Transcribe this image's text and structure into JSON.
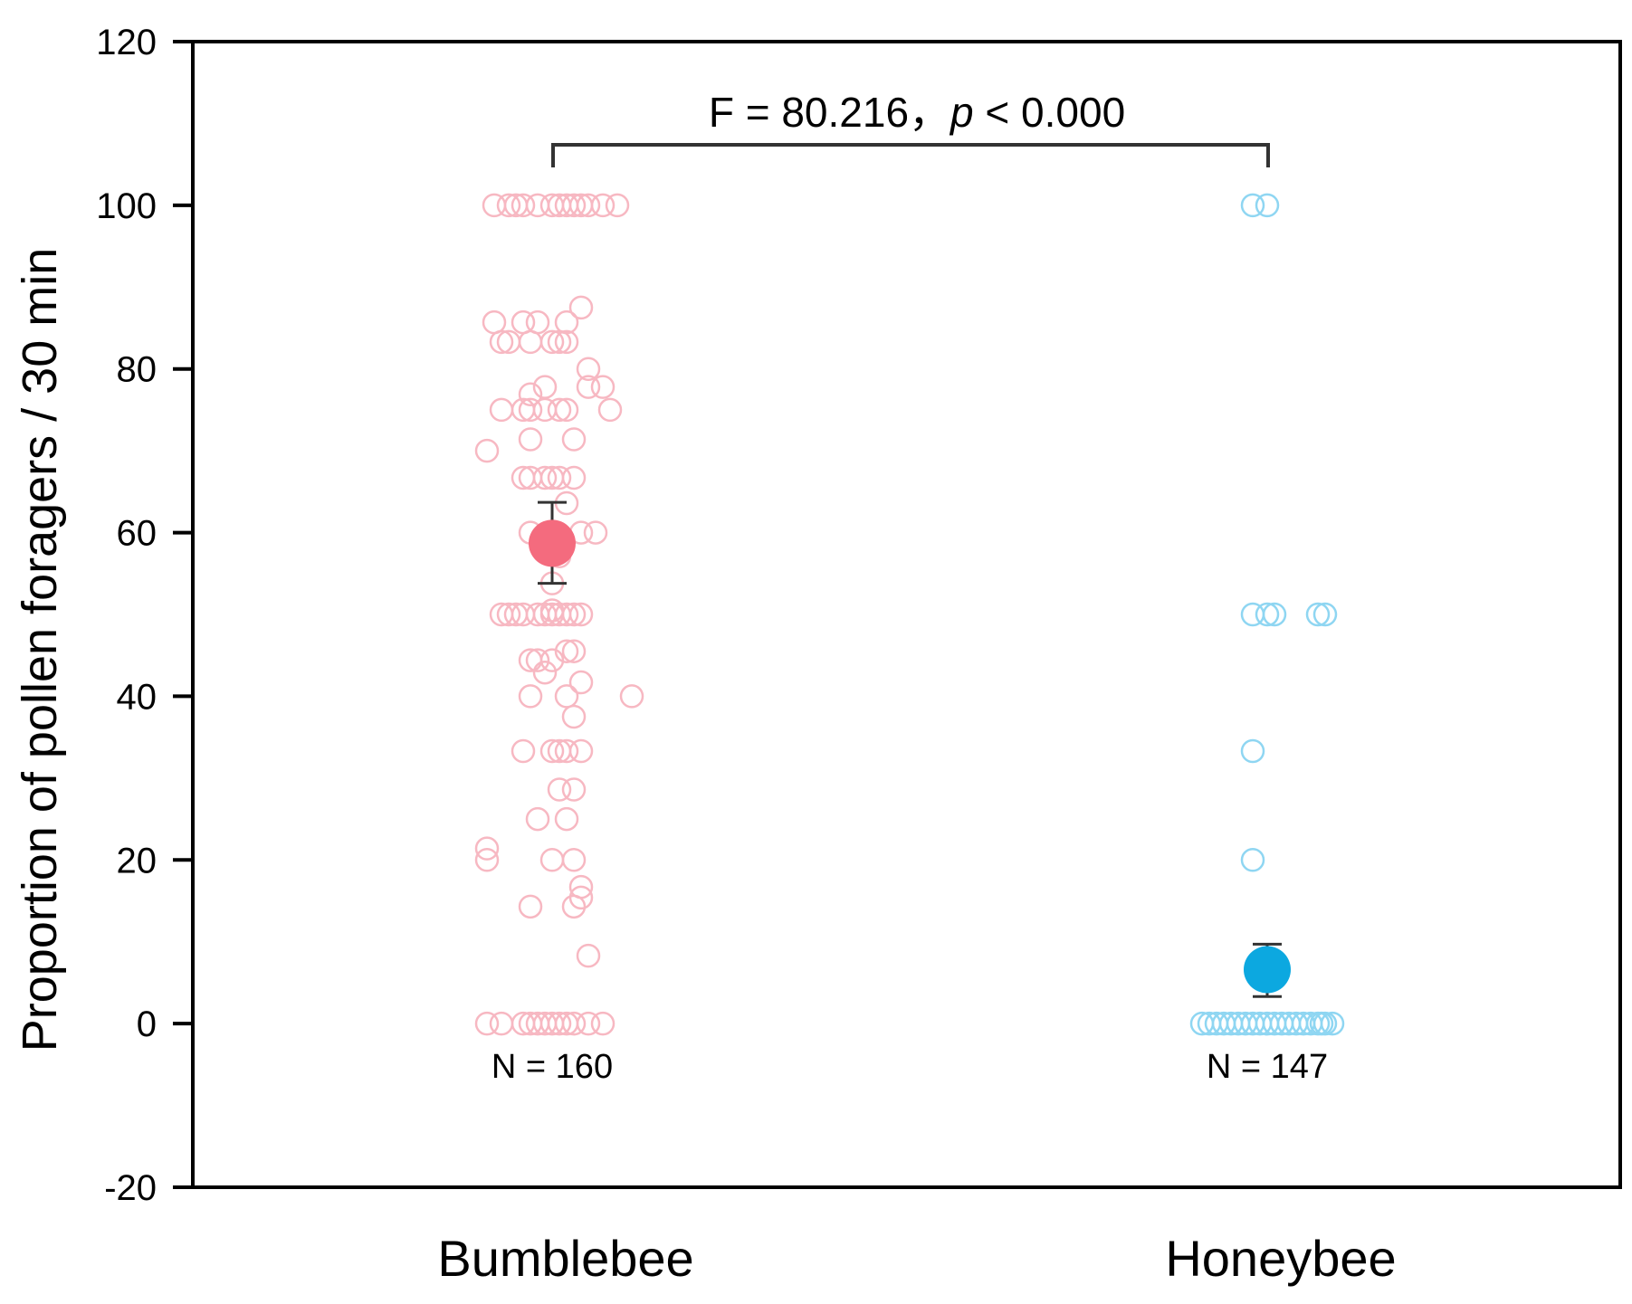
{
  "chart_data": {
    "type": "scatter",
    "xlabel": "",
    "ylabel": "Proportion of pollen foragers / 30 min",
    "ylim": [
      -20,
      120
    ],
    "yticks": [
      -20,
      0,
      20,
      40,
      60,
      80,
      100,
      120
    ],
    "grid": false,
    "categories": [
      "Bumblebee",
      "Honeybee"
    ],
    "annotation": {
      "text_prefix": "F = 80.216，",
      "text_p": "p",
      "text_suffix": " < 0.000"
    },
    "series": [
      {
        "name": "Bumblebee",
        "n_label": "N = 160",
        "point_color": "#f7b8c2",
        "mean_color": "#f46b7e",
        "mean": 58.7,
        "error_low": 53.8,
        "error_high": 63.7,
        "points": [
          [
            -0.08,
            100
          ],
          [
            -0.06,
            100
          ],
          [
            -0.04,
            100
          ],
          [
            -0.02,
            100
          ],
          [
            0.0,
            100
          ],
          [
            0.01,
            100
          ],
          [
            0.02,
            100
          ],
          [
            0.04,
            100
          ],
          [
            0.05,
            100
          ],
          [
            0.07,
            100
          ],
          [
            0.09,
            100
          ],
          [
            -0.05,
            100
          ],
          [
            0.03,
            100
          ],
          [
            -0.08,
            85.7
          ],
          [
            -0.04,
            85.7
          ],
          [
            -0.02,
            85.7
          ],
          [
            0.02,
            85.7
          ],
          [
            0.04,
            87.5
          ],
          [
            -0.07,
            83.3
          ],
          [
            -0.06,
            83.3
          ],
          [
            -0.03,
            83.3
          ],
          [
            0.0,
            83.3
          ],
          [
            0.01,
            83.3
          ],
          [
            0.02,
            83.3
          ],
          [
            0.05,
            80
          ],
          [
            0.05,
            77.8
          ],
          [
            0.07,
            77.8
          ],
          [
            -0.01,
            77.8
          ],
          [
            -0.03,
            76.9
          ],
          [
            -0.07,
            75
          ],
          [
            -0.04,
            75
          ],
          [
            -0.03,
            75
          ],
          [
            -0.01,
            75
          ],
          [
            0.02,
            75
          ],
          [
            0.01,
            75
          ],
          [
            0.08,
            75
          ],
          [
            -0.03,
            71.4
          ],
          [
            0.03,
            71.4
          ],
          [
            -0.09,
            70
          ],
          [
            -0.04,
            66.7
          ],
          [
            -0.03,
            66.7
          ],
          [
            -0.01,
            66.7
          ],
          [
            0.0,
            66.7
          ],
          [
            0.01,
            66.7
          ],
          [
            0.03,
            66.7
          ],
          [
            0.02,
            63.6
          ],
          [
            -0.03,
            60
          ],
          [
            0.04,
            60
          ],
          [
            0.06,
            60
          ],
          [
            0.01,
            57.1
          ],
          [
            0.0,
            53.8
          ],
          [
            -0.07,
            50
          ],
          [
            -0.06,
            50
          ],
          [
            -0.04,
            50
          ],
          [
            -0.02,
            50
          ],
          [
            -0.01,
            50
          ],
          [
            0.0,
            50
          ],
          [
            0.01,
            50
          ],
          [
            0.02,
            50
          ],
          [
            0.03,
            50
          ],
          [
            0.04,
            50
          ],
          [
            -0.05,
            50
          ],
          [
            0.0,
            50.5
          ],
          [
            0.02,
            45.5
          ],
          [
            0.03,
            45.5
          ],
          [
            -0.03,
            44.4
          ],
          [
            -0.02,
            44.4
          ],
          [
            0.0,
            44.4
          ],
          [
            -0.01,
            42.9
          ],
          [
            0.04,
            41.7
          ],
          [
            -0.03,
            40
          ],
          [
            0.02,
            40
          ],
          [
            0.11,
            40
          ],
          [
            0.03,
            37.5
          ],
          [
            -0.04,
            33.3
          ],
          [
            0.0,
            33.3
          ],
          [
            0.01,
            33.3
          ],
          [
            0.02,
            33.3
          ],
          [
            0.04,
            33.3
          ],
          [
            0.01,
            28.6
          ],
          [
            0.03,
            28.6
          ],
          [
            -0.02,
            25
          ],
          [
            0.02,
            25
          ],
          [
            -0.09,
            21.4
          ],
          [
            -0.09,
            20
          ],
          [
            0.0,
            20
          ],
          [
            0.03,
            20
          ],
          [
            0.04,
            16.7
          ],
          [
            0.04,
            15.4
          ],
          [
            0.03,
            14.3
          ],
          [
            -0.03,
            14.3
          ],
          [
            0.05,
            8.3
          ],
          [
            -0.09,
            0
          ],
          [
            -0.07,
            0
          ],
          [
            -0.04,
            0
          ],
          [
            -0.03,
            0
          ],
          [
            -0.02,
            0
          ],
          [
            -0.01,
            0
          ],
          [
            0.0,
            0
          ],
          [
            0.01,
            0
          ],
          [
            0.02,
            0
          ],
          [
            0.03,
            0
          ],
          [
            0.05,
            0
          ],
          [
            0.07,
            0
          ]
        ]
      },
      {
        "name": "Honeybee",
        "n_label": "N = 147",
        "point_color": "#8fd6f2",
        "mean_color": "#0ca8e0",
        "mean": 6.6,
        "error_low": 3.3,
        "error_high": 9.7,
        "points": [
          [
            -0.02,
            100
          ],
          [
            0.0,
            100
          ],
          [
            -0.02,
            50
          ],
          [
            0.0,
            50
          ],
          [
            0.01,
            50
          ],
          [
            0.07,
            50
          ],
          [
            0.08,
            50
          ],
          [
            -0.02,
            33.3
          ],
          [
            -0.02,
            20
          ],
          [
            -0.09,
            0
          ],
          [
            -0.08,
            0
          ],
          [
            -0.06,
            0
          ],
          [
            -0.05,
            0
          ],
          [
            -0.04,
            0
          ],
          [
            -0.03,
            0
          ],
          [
            -0.02,
            0
          ],
          [
            -0.01,
            0
          ],
          [
            0.0,
            0
          ],
          [
            0.01,
            0
          ],
          [
            0.02,
            0
          ],
          [
            0.03,
            0
          ],
          [
            0.04,
            0
          ],
          [
            0.05,
            0
          ],
          [
            0.06,
            0
          ],
          [
            0.07,
            0
          ],
          [
            0.08,
            0
          ],
          [
            0.09,
            0
          ],
          [
            -0.07,
            0
          ],
          [
            0.075,
            0
          ]
        ]
      }
    ]
  }
}
